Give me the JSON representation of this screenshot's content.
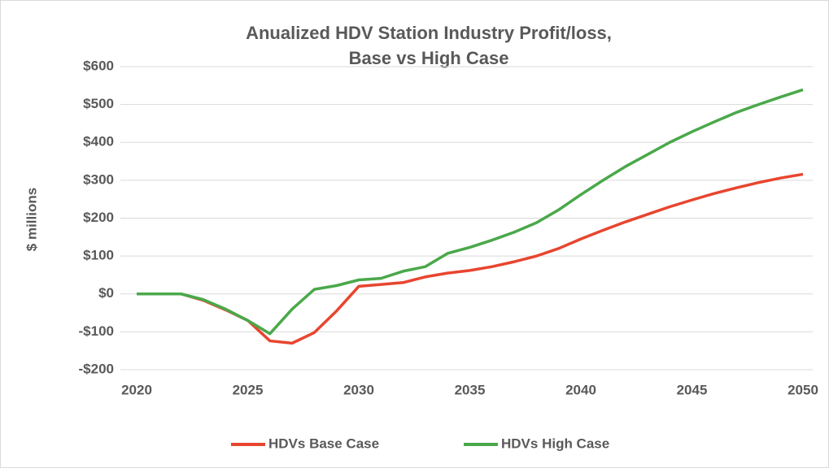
{
  "chart_data": {
    "type": "line",
    "title": [
      "Anualized HDV Station Industry Profit/loss,",
      "Base vs High Case"
    ],
    "y_label": "$ millions",
    "x": [
      2020,
      2021,
      2022,
      2023,
      2024,
      2025,
      2026,
      2027,
      2028,
      2029,
      2030,
      2031,
      2032,
      2033,
      2034,
      2035,
      2036,
      2037,
      2038,
      2039,
      2040,
      2041,
      2042,
      2043,
      2044,
      2045,
      2046,
      2047,
      2048,
      2049,
      2050
    ],
    "xlim": [
      2020,
      2050
    ],
    "xticks": [
      2020,
      2025,
      2030,
      2035,
      2040,
      2045,
      2050
    ],
    "ylim": [
      -200,
      600
    ],
    "yticks": [
      {
        "value": -200,
        "label": "-$200"
      },
      {
        "value": -100,
        "label": "-$100"
      },
      {
        "value": 0,
        "label": "$0"
      },
      {
        "value": 100,
        "label": "$100"
      },
      {
        "value": 200,
        "label": "$200"
      },
      {
        "value": 300,
        "label": "$300"
      },
      {
        "value": 400,
        "label": "$400"
      },
      {
        "value": 500,
        "label": "$500"
      },
      {
        "value": 600,
        "label": "$600"
      }
    ],
    "grid": true,
    "legend": "bottom",
    "series": [
      {
        "name": "HDVs Base Case",
        "color": "#e8452f",
        "values": [
          0,
          0,
          0,
          -17,
          -42,
          -70,
          -124,
          -130,
          -102,
          -45,
          20,
          25,
          30,
          45,
          55,
          62,
          72,
          85,
          100,
          120,
          145,
          168,
          190,
          210,
          230,
          248,
          265,
          280,
          294,
          306,
          316
        ]
      },
      {
        "name": "HDVs High Case",
        "color": "#4aa84a",
        "values": [
          0,
          0,
          0,
          -15,
          -40,
          -70,
          -105,
          -40,
          12,
          22,
          37,
          41,
          60,
          72,
          107,
          123,
          142,
          163,
          188,
          222,
          262,
          300,
          336,
          368,
          400,
          428,
          454,
          479,
          500,
          520,
          539
        ]
      }
    ]
  }
}
